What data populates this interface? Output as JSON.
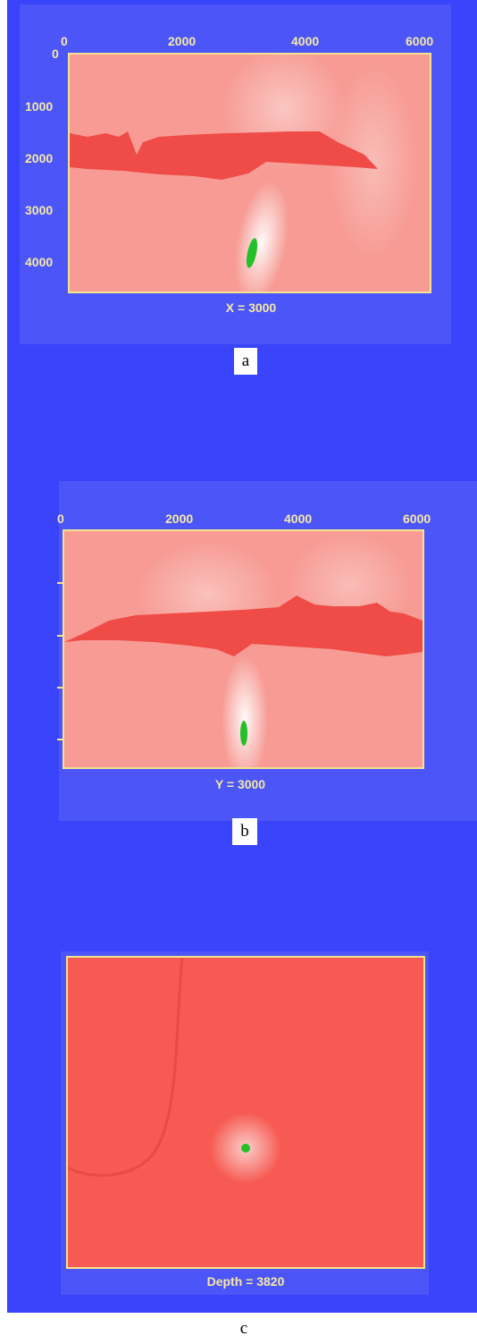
{
  "panels": [
    {
      "letter": "a",
      "caption": "X = 3000",
      "x_ticks": [
        "0",
        "2000",
        "4000",
        "6000"
      ],
      "y_ticks": [
        "0",
        "1000",
        "2000",
        "3000",
        "4000"
      ]
    },
    {
      "letter": "b",
      "caption": "Y = 3000",
      "x_ticks": [
        "0",
        "2000",
        "4000",
        "6000"
      ]
    },
    {
      "letter": "c",
      "caption": "Depth = 3820"
    }
  ],
  "colors": {
    "background": "#3a44fb",
    "field": "#f7908a",
    "salt_body": "#ef4b47",
    "focus": "#22c02a",
    "frame": "#f3e38d"
  }
}
